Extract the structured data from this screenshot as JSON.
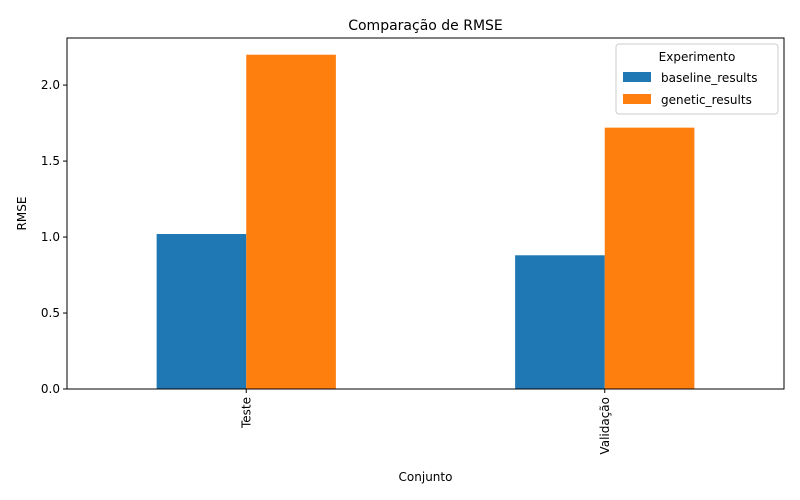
{
  "chart_data": {
    "type": "bar",
    "title": "Comparação de RMSE",
    "xlabel": "Conjunto",
    "ylabel": "RMSE",
    "categories": [
      "Teste",
      "Validação"
    ],
    "series": [
      {
        "name": "baseline_results",
        "values": [
          1.02,
          0.88
        ],
        "color": "#1f77b4"
      },
      {
        "name": "genetic_results",
        "values": [
          2.2,
          1.72
        ],
        "color": "#ff7f0e"
      }
    ],
    "ylim": [
      0,
      2.31
    ],
    "yticks": [
      0.0,
      0.5,
      1.0,
      1.5,
      2.0
    ],
    "ytick_labels": [
      "0.0",
      "0.5",
      "1.0",
      "1.5",
      "2.0"
    ],
    "legend": {
      "title": "Experimento",
      "position": "top-right"
    },
    "grid": false
  }
}
